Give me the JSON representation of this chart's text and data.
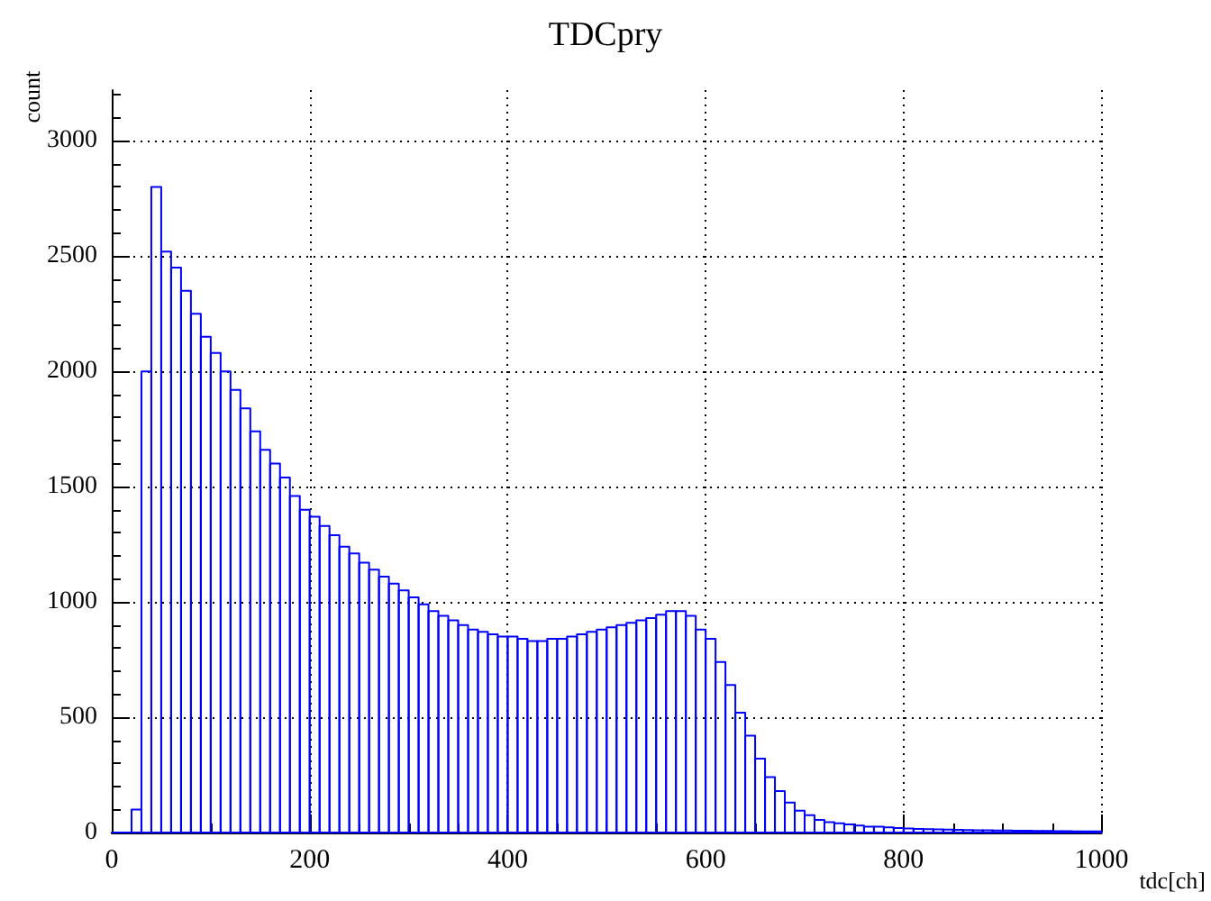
{
  "chart_data": {
    "type": "histogram",
    "title": "TDCpry",
    "xlabel": "tdc[ch]",
    "ylabel": "count",
    "bins": [
      0,
      10,
      20,
      30,
      40,
      50,
      60,
      70,
      80,
      90,
      100,
      110,
      120,
      130,
      140,
      150,
      160,
      170,
      180,
      190,
      200,
      210,
      220,
      230,
      240,
      250,
      260,
      270,
      280,
      290,
      300,
      310,
      320,
      330,
      340,
      350,
      360,
      370,
      380,
      390,
      400,
      410,
      420,
      430,
      440,
      450,
      460,
      470,
      480,
      490,
      500,
      510,
      520,
      530,
      540,
      550,
      560,
      570,
      580,
      590,
      600,
      610,
      620,
      630,
      640,
      650,
      660,
      670,
      680,
      690,
      700,
      710,
      720,
      730,
      740,
      750,
      760,
      770,
      780,
      790,
      800,
      810,
      820,
      830,
      840,
      850,
      860,
      870,
      880,
      890,
      900,
      910,
      920,
      930,
      940,
      950,
      960,
      970,
      980,
      990,
      1000
    ],
    "series": [
      {
        "color": "#0000ff",
        "values": [
          0,
          0,
          100,
          2000,
          2800,
          2520,
          2450,
          2350,
          2250,
          2150,
          2080,
          2000,
          1920,
          1840,
          1740,
          1660,
          1600,
          1540,
          1460,
          1400,
          1370,
          1330,
          1290,
          1240,
          1210,
          1170,
          1140,
          1110,
          1080,
          1050,
          1020,
          990,
          960,
          940,
          920,
          900,
          880,
          870,
          860,
          850,
          850,
          840,
          830,
          830,
          840,
          840,
          850,
          860,
          870,
          880,
          890,
          900,
          910,
          920,
          930,
          945,
          960,
          960,
          940,
          880,
          840,
          740,
          640,
          520,
          420,
          320,
          240,
          180,
          130,
          95,
          75,
          55,
          45,
          40,
          35,
          30,
          25,
          25,
          22,
          20,
          18,
          16,
          15,
          14,
          13,
          12,
          11,
          10,
          10,
          9,
          9,
          8,
          8,
          7,
          7,
          6,
          6,
          5,
          5,
          5
        ]
      }
    ],
    "xlim": [
      0,
      1000
    ],
    "xticks": [
      0,
      200,
      400,
      600,
      800,
      1000
    ],
    "ylim": [
      0,
      3220
    ],
    "yticks": [
      0,
      500,
      1000,
      1500,
      2000,
      2500,
      3000
    ],
    "grid": true
  }
}
